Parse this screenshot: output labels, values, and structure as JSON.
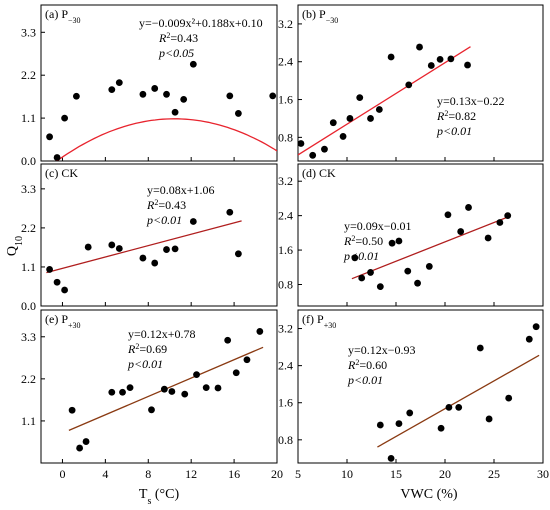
{
  "figure": {
    "ylabel": "Q₁₀",
    "xlabel_left": "Tₛ (°C)",
    "xlabel_right": "VWC (%)"
  },
  "chart_data": [
    {
      "type": "scatter",
      "panel": "a",
      "label": "(a)",
      "treatment": "P−30",
      "treatment_main": "P",
      "treatment_sub": "−30",
      "equation": "y=−0.009x²+0.188x+0.10",
      "r2": "0.43",
      "p": "p<0.05",
      "fit": "quadratic",
      "fit_coeffs": [
        -0.009,
        0.188,
        0.1
      ],
      "fit_color": "#e8242e",
      "xlim": [
        -2,
        20
      ],
      "ylim": [
        0,
        4.0
      ],
      "xticks": [
        0,
        4,
        8,
        12,
        16,
        20
      ],
      "yticks": [
        0.0,
        1.1,
        2.2,
        3.3
      ],
      "ytick_labels": [
        "0.0",
        "1.1",
        "2.2",
        "3.3"
      ],
      "show_xtick_labels": false,
      "x": [
        -1.2,
        -0.5,
        0.2,
        1.3,
        4.6,
        5.3,
        7.5,
        8.6,
        9.7,
        10.5,
        11.3,
        12.2,
        15.6,
        16.4,
        19.6
      ],
      "y": [
        0.62,
        0.09,
        1.1,
        1.66,
        1.83,
        2.01,
        1.71,
        1.86,
        1.71,
        1.25,
        1.58,
        2.48,
        1.67,
        1.22,
        1.67
      ]
    },
    {
      "type": "scatter",
      "panel": "b",
      "label": "(b)",
      "treatment": "P−30",
      "treatment_main": "P",
      "treatment_sub": "−30",
      "equation": "y=0.13x−0.22",
      "r2": "0.82",
      "p": "p<0.01",
      "fit": "linear",
      "fit_coeffs": [
        0.13,
        -0.22
      ],
      "fit_color": "#e8242e",
      "xlim": [
        5,
        30
      ],
      "ylim": [
        0.3,
        3.6
      ],
      "xticks": [
        5,
        10,
        15,
        20,
        25,
        30
      ],
      "yticks": [
        0.8,
        1.6,
        2.4,
        3.2
      ],
      "ytick_labels": [
        "0.8",
        "1.6",
        "2.4",
        "3.2"
      ],
      "show_xtick_labels": false,
      "x": [
        5.3,
        6.5,
        7.7,
        8.6,
        9.6,
        10.3,
        11.3,
        12.4,
        13.3,
        14.5,
        16.3,
        17.4,
        18.6,
        19.5,
        20.6,
        22.3
      ],
      "y": [
        0.67,
        0.42,
        0.55,
        1.11,
        0.82,
        1.2,
        1.64,
        1.2,
        1.39,
        2.5,
        1.91,
        2.71,
        2.32,
        2.45,
        2.46,
        2.33
      ]
    },
    {
      "type": "scatter",
      "panel": "c",
      "label": "(c)",
      "treatment": "CK",
      "equation": "y=0.08x+1.06",
      "r2": "0.43",
      "p": "p<0.01",
      "fit": "linear",
      "fit_coeffs": [
        0.08,
        1.06
      ],
      "fit_color": "#b01e1e",
      "xlim": [
        -2,
        20
      ],
      "ylim": [
        0,
        4.0
      ],
      "xticks": [
        0,
        4,
        8,
        12,
        16,
        20
      ],
      "yticks": [
        0.0,
        1.1,
        2.2,
        3.3
      ],
      "ytick_labels": [
        "0.0",
        "1.1",
        "2.2",
        "3.3"
      ],
      "show_xtick_labels": false,
      "x": [
        -1.2,
        -0.5,
        0.2,
        2.4,
        4.6,
        5.3,
        7.5,
        8.6,
        9.7,
        10.5,
        12.2,
        15.6,
        16.4
      ],
      "y": [
        1.03,
        0.67,
        0.45,
        1.66,
        1.72,
        1.62,
        1.35,
        1.21,
        1.59,
        1.61,
        2.38,
        2.64,
        1.47
      ]
    },
    {
      "type": "scatter",
      "panel": "d",
      "label": "(d)",
      "treatment": "CK",
      "equation": "y=0.09x−0.01",
      "r2": "0.50",
      "p": "p<0.01",
      "fit": "linear",
      "fit_coeffs": [
        0.09,
        -0.01
      ],
      "fit_color": "#b01e1e",
      "xlim": [
        5,
        30
      ],
      "ylim": [
        0.3,
        3.6
      ],
      "xticks": [
        5,
        10,
        15,
        20,
        25,
        30
      ],
      "yticks": [
        0.8,
        1.6,
        2.4,
        3.2
      ],
      "ytick_labels": [
        "0.8",
        "1.6",
        "2.4",
        "3.2"
      ],
      "show_xtick_labels": false,
      "x": [
        10.8,
        11.5,
        12.4,
        13.4,
        14.6,
        15.3,
        16.2,
        17.2,
        18.4,
        20.3,
        21.6,
        22.4,
        24.4,
        25.6,
        26.4
      ],
      "y": [
        1.42,
        0.95,
        1.08,
        0.75,
        1.76,
        1.81,
        1.11,
        0.83,
        1.22,
        2.42,
        2.03,
        2.59,
        1.88,
        2.24,
        2.4
      ]
    },
    {
      "type": "scatter",
      "panel": "e",
      "label": "(e)",
      "treatment": "P+30",
      "treatment_main": "P",
      "treatment_sub": "+30",
      "equation": "y=0.12x+0.78",
      "r2": "0.69",
      "p": "p<0.01",
      "fit": "linear",
      "fit_coeffs": [
        0.12,
        0.78
      ],
      "fit_color": "#8a3a12",
      "xlim": [
        -2,
        20
      ],
      "ylim": [
        0,
        4.0
      ],
      "xticks": [
        0,
        4,
        8,
        12,
        16,
        20
      ],
      "yticks": [
        1.1,
        2.2,
        3.3
      ],
      "ytick_labels": [
        "1.1",
        "2.2",
        "3.3"
      ],
      "show_xtick_labels": true,
      "x": [
        0.9,
        1.6,
        2.2,
        4.6,
        5.6,
        6.3,
        8.3,
        9.5,
        10.2,
        11.4,
        12.5,
        13.4,
        14.5,
        15.4,
        16.2,
        17.2,
        18.4
      ],
      "y": [
        1.38,
        0.39,
        0.56,
        1.85,
        1.85,
        1.97,
        1.39,
        1.93,
        1.87,
        1.8,
        2.31,
        1.97,
        1.96,
        3.21,
        2.36,
        2.7,
        3.44
      ]
    },
    {
      "type": "scatter",
      "panel": "f",
      "label": "(f)",
      "treatment": "P+30",
      "treatment_main": "P",
      "treatment_sub": "+30",
      "equation": "y=0.12x−0.93",
      "r2": "0.60",
      "p": "p<0.01",
      "fit": "linear",
      "fit_coeffs": [
        0.12,
        -0.93
      ],
      "fit_color": "#8a3a12",
      "xlim": [
        5,
        30
      ],
      "ylim": [
        0.3,
        3.6
      ],
      "xticks": [
        5,
        10,
        15,
        20,
        25,
        30
      ],
      "yticks": [
        0.8,
        1.6,
        2.4,
        3.2
      ],
      "ytick_labels": [
        "0.8",
        "1.6",
        "2.4",
        "3.2"
      ],
      "show_xtick_labels": true,
      "x": [
        13.4,
        14.5,
        15.3,
        16.4,
        19.6,
        20.4,
        21.4,
        23.6,
        24.5,
        26.5,
        28.6,
        29.3
      ],
      "y": [
        1.12,
        0.4,
        1.15,
        1.38,
        1.05,
        1.5,
        1.5,
        2.78,
        1.25,
        1.7,
        2.97,
        3.24
      ]
    }
  ]
}
